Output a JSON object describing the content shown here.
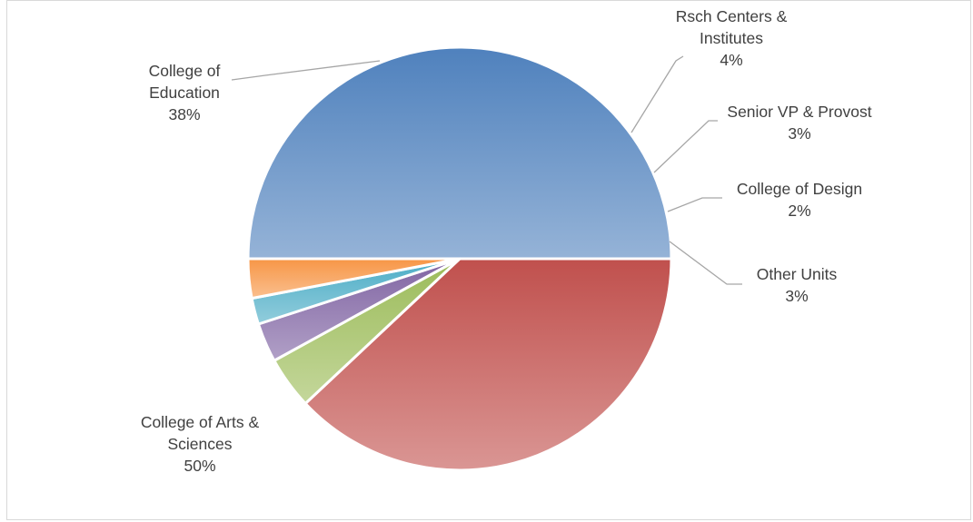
{
  "chart_data": {
    "type": "pie",
    "title": "",
    "legend": "none",
    "slices": [
      {
        "name": "College of Arts & Sciences",
        "label_lines": [
          "College of Arts &",
          "Sciences"
        ],
        "value": 50,
        "percent_label": "50%",
        "color": "#4f81bd",
        "color_light": "#95b3d7"
      },
      {
        "name": "College of Education",
        "label_lines": [
          "College of",
          "Education"
        ],
        "value": 38,
        "percent_label": "38%",
        "color": "#c0504d",
        "color_light": "#da9694"
      },
      {
        "name": "Rsch Centers & Institutes",
        "label_lines": [
          "Rsch Centers &",
          "Institutes"
        ],
        "value": 4,
        "percent_label": "4%",
        "color": "#9bbb59",
        "color_light": "#c4d79b"
      },
      {
        "name": "Senior VP & Provost",
        "label_lines": [
          "Senior VP & Provost"
        ],
        "value": 3,
        "percent_label": "3%",
        "color": "#8064a2",
        "color_light": "#b1a0c7"
      },
      {
        "name": "College of Design",
        "label_lines": [
          "College of Design"
        ],
        "value": 2,
        "percent_label": "2%",
        "color": "#4bacc6",
        "color_light": "#92cddc"
      },
      {
        "name": "Other Units",
        "label_lines": [
          "Other Units"
        ],
        "value": 3,
        "percent_label": "3%",
        "color": "#f79646",
        "color_light": "#fabf8f"
      }
    ]
  }
}
